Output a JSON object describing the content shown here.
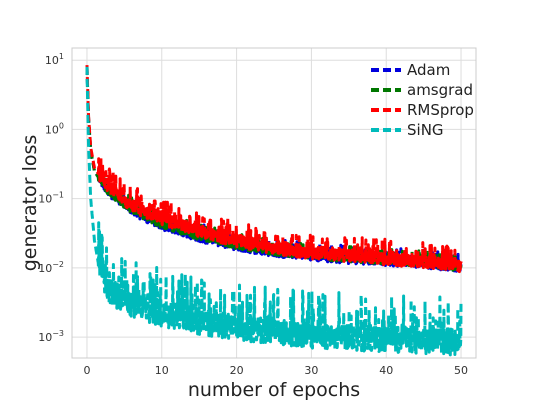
{
  "chart_data": {
    "type": "line",
    "title": "",
    "xlabel": "number of epochs",
    "ylabel": "generator loss",
    "xlim": [
      -2.0,
      52.0
    ],
    "ylim": [
      0.0005,
      15
    ],
    "yscale": "log",
    "xticks": [
      0,
      10,
      20,
      30,
      40,
      50
    ],
    "xtick_labels": [
      "0",
      "10",
      "20",
      "30",
      "40",
      "50"
    ],
    "yticks": [
      0.001,
      0.01,
      0.1,
      1,
      10
    ],
    "ytick_labels": [
      {
        "base": "10",
        "exp": "−3"
      },
      {
        "base": "10",
        "exp": "−2"
      },
      {
        "base": "10",
        "exp": "−1"
      },
      {
        "base": "10",
        "exp": "0"
      },
      {
        "base": "10",
        "exp": "1"
      }
    ],
    "grid": true,
    "legend_position": "top-right",
    "line_style": "dashed",
    "series": [
      {
        "name": "Adam",
        "color": "#0000dd",
        "x": [
          0,
          0.2,
          0.5,
          1,
          2,
          3,
          5,
          7,
          10,
          12,
          15,
          20,
          25,
          30,
          35,
          40,
          45,
          50
        ],
        "y": [
          8.0,
          1.5,
          0.5,
          0.25,
          0.17,
          0.12,
          0.08,
          0.058,
          0.04,
          0.035,
          0.027,
          0.02,
          0.0165,
          0.0145,
          0.013,
          0.0122,
          0.0112,
          0.0098
        ],
        "spike": 1.35
      },
      {
        "name": "amsgrad",
        "color": "#007700",
        "x": [
          0,
          0.2,
          0.5,
          1,
          2,
          3,
          5,
          7,
          10,
          12,
          15,
          20,
          25,
          30,
          35,
          40,
          45,
          50
        ],
        "y": [
          8.0,
          1.5,
          0.5,
          0.25,
          0.17,
          0.12,
          0.08,
          0.06,
          0.042,
          0.036,
          0.028,
          0.021,
          0.017,
          0.015,
          0.0135,
          0.0125,
          0.0115,
          0.01
        ],
        "spike": 1.3
      },
      {
        "name": "RMSprop",
        "color": "#ff0000",
        "x": [
          0,
          0.2,
          0.5,
          1,
          2,
          3,
          5,
          7,
          10,
          12,
          15,
          20,
          25,
          30,
          35,
          40,
          45,
          50
        ],
        "y": [
          8.5,
          1.6,
          0.55,
          0.28,
          0.19,
          0.14,
          0.09,
          0.068,
          0.05,
          0.042,
          0.033,
          0.024,
          0.019,
          0.016,
          0.0145,
          0.013,
          0.012,
          0.0105
        ],
        "spike": 1.55
      },
      {
        "name": "SiNG",
        "color": "#00bbbb",
        "x": [
          0,
          0.2,
          0.5,
          1,
          1.5,
          2,
          3,
          5,
          7,
          10,
          12,
          15,
          20,
          25,
          30,
          35,
          40,
          45,
          50
        ],
        "y": [
          8.0,
          0.6,
          0.1,
          0.025,
          0.012,
          0.008,
          0.0045,
          0.0032,
          0.0026,
          0.0021,
          0.0019,
          0.0016,
          0.0013,
          0.00115,
          0.001,
          0.00095,
          0.0009,
          0.00085,
          0.0008
        ],
        "spike": 2.6
      }
    ]
  }
}
